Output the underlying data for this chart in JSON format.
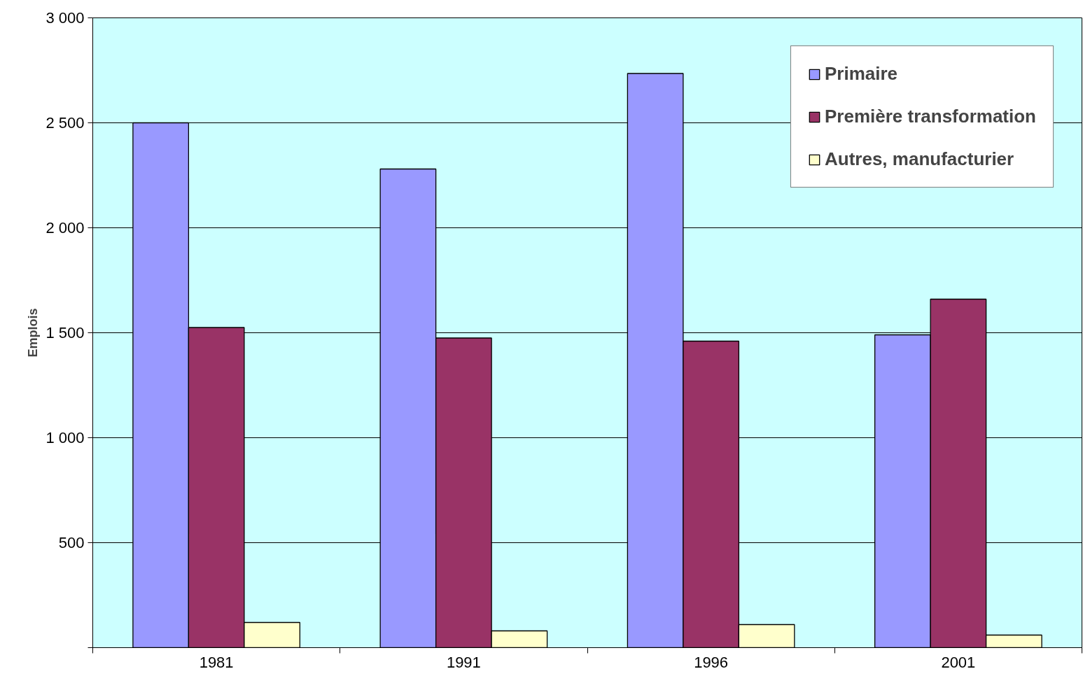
{
  "chart_data": {
    "type": "bar",
    "ylabel": "Emplois",
    "categories": [
      "1981",
      "1991",
      "1996",
      "2001"
    ],
    "series": [
      {
        "name": "Primaire",
        "color": "#9999ff",
        "values": [
          2500,
          2280,
          2735,
          1490
        ]
      },
      {
        "name": "Première transformation",
        "color": "#993366",
        "values": [
          1525,
          1475,
          1460,
          1660
        ]
      },
      {
        "name": "Autres, manufacturier",
        "color": "#ffffcc",
        "values": [
          120,
          80,
          110,
          60
        ]
      }
    ],
    "ylim": [
      0,
      3000
    ],
    "yticks": [
      {
        "value": 0,
        "label": null
      },
      {
        "value": 500,
        "label": "500"
      },
      {
        "value": 1000,
        "label": "1 000"
      },
      {
        "value": 1500,
        "label": "1 500"
      },
      {
        "value": 2000,
        "label": "2 000"
      },
      {
        "value": 2500,
        "label": "2 500"
      },
      {
        "value": 3000,
        "label": "3 000"
      }
    ],
    "grid": "y",
    "legend": "top right"
  }
}
